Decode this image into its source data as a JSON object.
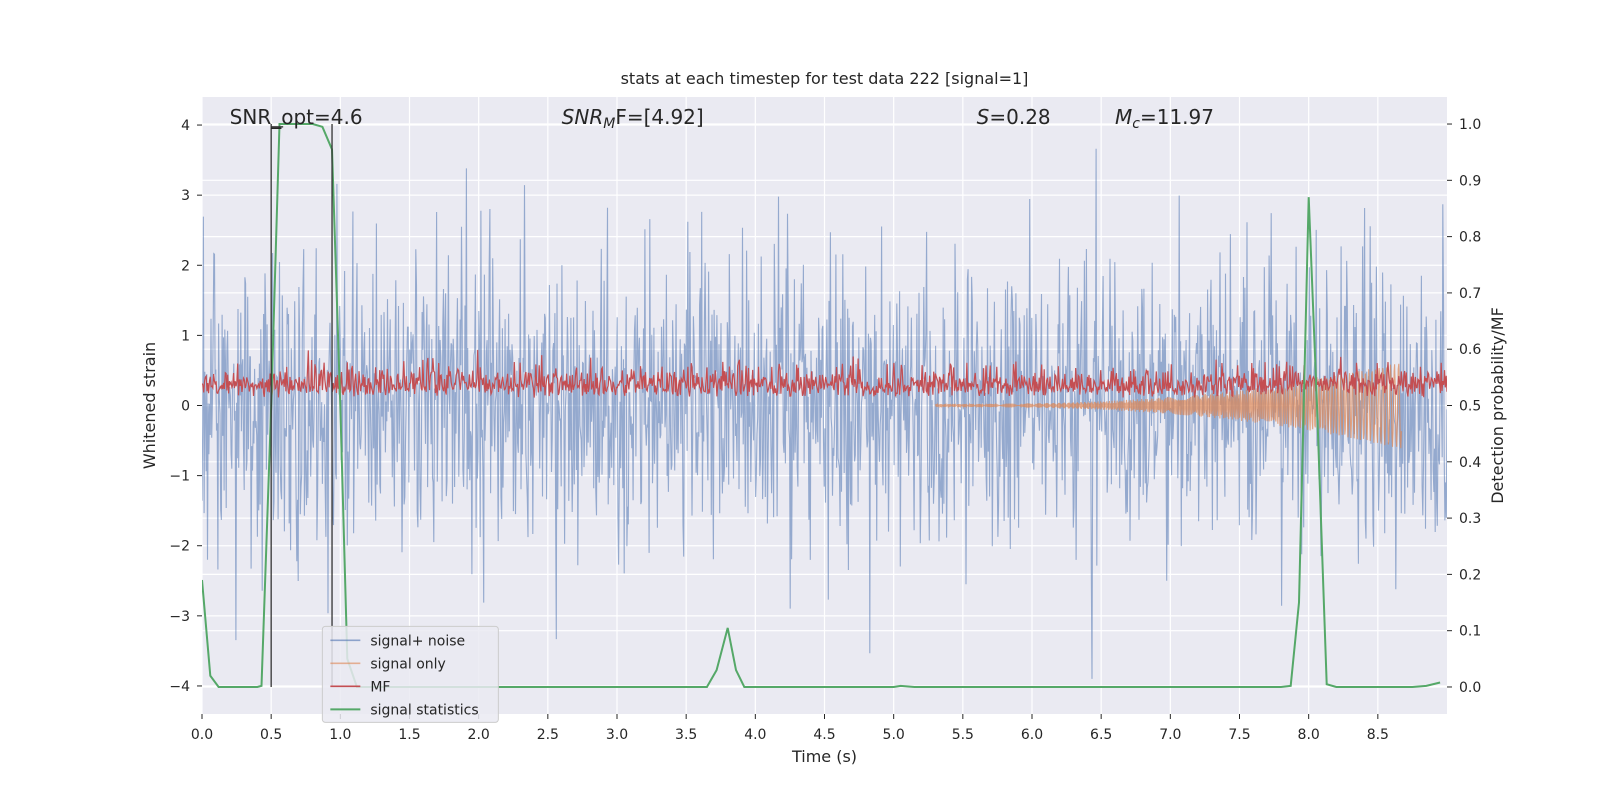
{
  "chart_data": {
    "type": "line",
    "title": "stats at each timestep for test data 222 [signal=1]",
    "xlabel": "Time (s)",
    "ylabel": "Whitened strain",
    "y2label": "Detection probability/MF",
    "xlim": [
      0.0,
      9.0
    ],
    "ylim": [
      -4.4,
      4.4
    ],
    "y2lim": [
      -0.048,
      1.048
    ],
    "xticks": [
      "0.0",
      "0.5",
      "1.0",
      "1.5",
      "2.0",
      "2.5",
      "3.0",
      "3.5",
      "4.0",
      "4.5",
      "5.0",
      "5.5",
      "6.0",
      "6.5",
      "7.0",
      "7.5",
      "8.0",
      "8.5"
    ],
    "yticks": [
      "4",
      "3",
      "2",
      "1",
      "0",
      "−1",
      "−2",
      "−3",
      "−4"
    ],
    "y2ticks": [
      "1.0",
      "0.9",
      "0.8",
      "0.7",
      "0.6",
      "0.5",
      "0.4",
      "0.3",
      "0.2",
      "0.1",
      "0.0"
    ],
    "grid": true,
    "legend_position": "lower-left",
    "annotations": {
      "snr_opt": "SNR_opt=4.6",
      "snr_mf_prefix": "SNR",
      "snr_mf_sub": "M",
      "snr_mf_suffix": "F=[4.92]",
      "s_prefix": "S",
      "s_suffix": "=0.28",
      "mc_prefix": "M",
      "mc_sub": "c",
      "mc_suffix": "=11.97"
    },
    "detection_markers_x": [
      0.5,
      0.94
    ],
    "series": [
      {
        "name": "signal+ noise",
        "axis": "left",
        "color": "#4c72b0",
        "description": "whitened noisy strain, roughly between -3.5 and 4"
      },
      {
        "name": "signal only",
        "axis": "left",
        "color": "#dd8452",
        "chirp_end_x": 8.67,
        "chirp_end_amplitude": 0.6
      },
      {
        "name": "MF",
        "axis": "right",
        "color": "#c44e52",
        "description": "matched filter output, mostly 0.50-0.58"
      },
      {
        "name": "signal statistics",
        "axis": "right",
        "color": "#55a868",
        "points": [
          [
            0.0,
            0.19
          ],
          [
            0.06,
            0.02
          ],
          [
            0.12,
            0.0
          ],
          [
            0.2,
            0.0
          ],
          [
            0.4,
            0.0
          ],
          [
            0.43,
            0.002
          ],
          [
            0.5,
            0.5
          ],
          [
            0.56,
            1.0
          ],
          [
            0.65,
            1.0
          ],
          [
            0.8,
            1.0
          ],
          [
            0.87,
            0.995
          ],
          [
            0.94,
            0.955
          ],
          [
            1.0,
            0.5
          ],
          [
            1.05,
            0.05
          ],
          [
            1.12,
            0.0
          ],
          [
            1.5,
            0.0
          ],
          [
            2.0,
            0.0
          ],
          [
            3.0,
            0.0
          ],
          [
            3.65,
            0.0
          ],
          [
            3.72,
            0.03
          ],
          [
            3.8,
            0.105
          ],
          [
            3.86,
            0.03
          ],
          [
            3.92,
            0.0
          ],
          [
            4.5,
            0.0
          ],
          [
            5.0,
            0.0
          ],
          [
            5.05,
            0.002
          ],
          [
            5.15,
            0.0
          ],
          [
            6.0,
            0.0
          ],
          [
            7.0,
            0.0
          ],
          [
            7.8,
            0.0
          ],
          [
            7.87,
            0.002
          ],
          [
            7.93,
            0.15
          ],
          [
            8.0,
            0.87
          ],
          [
            8.06,
            0.5
          ],
          [
            8.13,
            0.005
          ],
          [
            8.2,
            0.0
          ],
          [
            8.75,
            0.0
          ],
          [
            8.85,
            0.002
          ],
          [
            8.95,
            0.008
          ]
        ]
      }
    ]
  },
  "colors": {
    "plot_background": "#eaeaf2",
    "grid": "#ffffff",
    "text": "#262626",
    "marker": "#333333"
  }
}
